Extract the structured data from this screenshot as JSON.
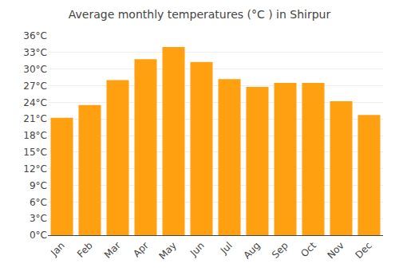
{
  "chart_data": {
    "type": "bar",
    "title": "Average monthly temperatures (°C ) in Shirpur",
    "categories": [
      "Jan",
      "Feb",
      "Mar",
      "Apr",
      "May",
      "Jun",
      "Jul",
      "Aug",
      "Sep",
      "Oct",
      "Nov",
      "Dec"
    ],
    "values": [
      21.2,
      23.5,
      28.0,
      31.8,
      34.0,
      31.3,
      28.2,
      26.8,
      27.5,
      27.5,
      24.2,
      21.7
    ],
    "color": "#FFA010",
    "ylim": [
      0,
      36
    ],
    "yticks": [
      {
        "value": 0,
        "label": "0°C"
      },
      {
        "value": 3,
        "label": "3°C"
      },
      {
        "value": 6,
        "label": "6°C"
      },
      {
        "value": 9,
        "label": "9°C"
      },
      {
        "value": 12,
        "label": "12°C"
      },
      {
        "value": 15,
        "label": "15°C"
      },
      {
        "value": 18,
        "label": "18°C"
      },
      {
        "value": 21,
        "label": "21°C"
      },
      {
        "value": 24,
        "label": "24°C"
      },
      {
        "value": 27,
        "label": "27°C"
      },
      {
        "value": 30,
        "label": "30°C"
      },
      {
        "value": 33,
        "label": "33°C"
      },
      {
        "value": 36,
        "label": "36°C"
      }
    ],
    "grid": true
  }
}
